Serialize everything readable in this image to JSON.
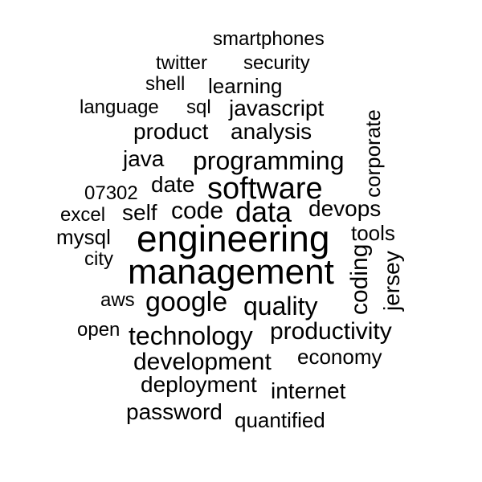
{
  "words": {
    "smartphones": "smartphones",
    "twitter": "twitter",
    "security": "security",
    "shell": "shell",
    "learning": "learning",
    "language": "language",
    "sql": "sql",
    "javascript": "javascript",
    "product": "product",
    "analysis": "analysis",
    "corporate": "corporate",
    "java": "java",
    "programming": "programming",
    "zip": "07302",
    "date": "date",
    "software": "software",
    "excel": "excel",
    "self": "self",
    "code": "code",
    "data": "data",
    "devops": "devops",
    "mysql": "mysql",
    "engineering": "engineering",
    "tools": "tools",
    "city": "city",
    "management": "management",
    "coding": "coding",
    "jersey": "jersey",
    "aws": "aws",
    "google": "google",
    "quality": "quality",
    "open": "open",
    "technology": "technology",
    "productivity": "productivity",
    "development": "development",
    "economy": "economy",
    "deployment": "deployment",
    "internet": "internet",
    "password": "password",
    "quantified": "quantified"
  }
}
